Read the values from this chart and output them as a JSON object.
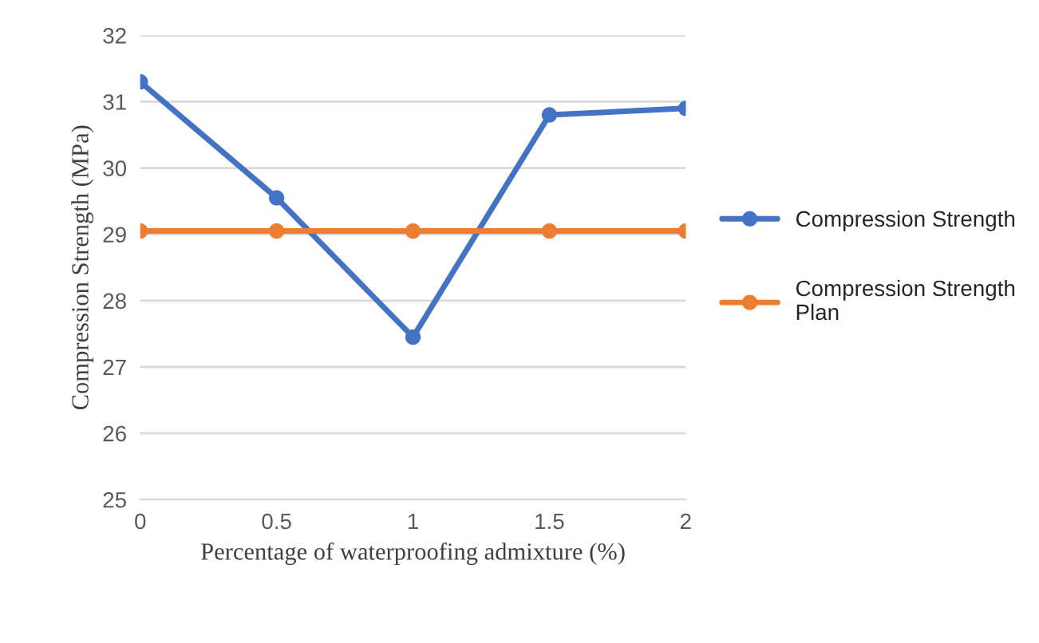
{
  "chart_data": {
    "type": "line",
    "xlabel": "Percentage of waterproofing admixture (%)",
    "ylabel": "Compression Strength (MPa)",
    "x": [
      0,
      0.5,
      1,
      1.5,
      2
    ],
    "xlim": [
      0,
      2
    ],
    "xticks": [
      0,
      0.5,
      1,
      1.5,
      2
    ],
    "ylim": [
      25,
      32
    ],
    "yticks": [
      25,
      26,
      27,
      28,
      29,
      30,
      31,
      32
    ],
    "grid": "y",
    "legend": "right",
    "marker": "circle",
    "series": [
      {
        "name": "Compression Strength",
        "color": "#4472c4",
        "values": [
          31.3,
          29.55,
          27.45,
          30.8,
          30.9
        ]
      },
      {
        "name": "Compression Strength Plan",
        "color": "#ed7d31",
        "values": [
          29.05,
          29.05,
          29.05,
          29.05,
          29.05
        ]
      }
    ]
  }
}
